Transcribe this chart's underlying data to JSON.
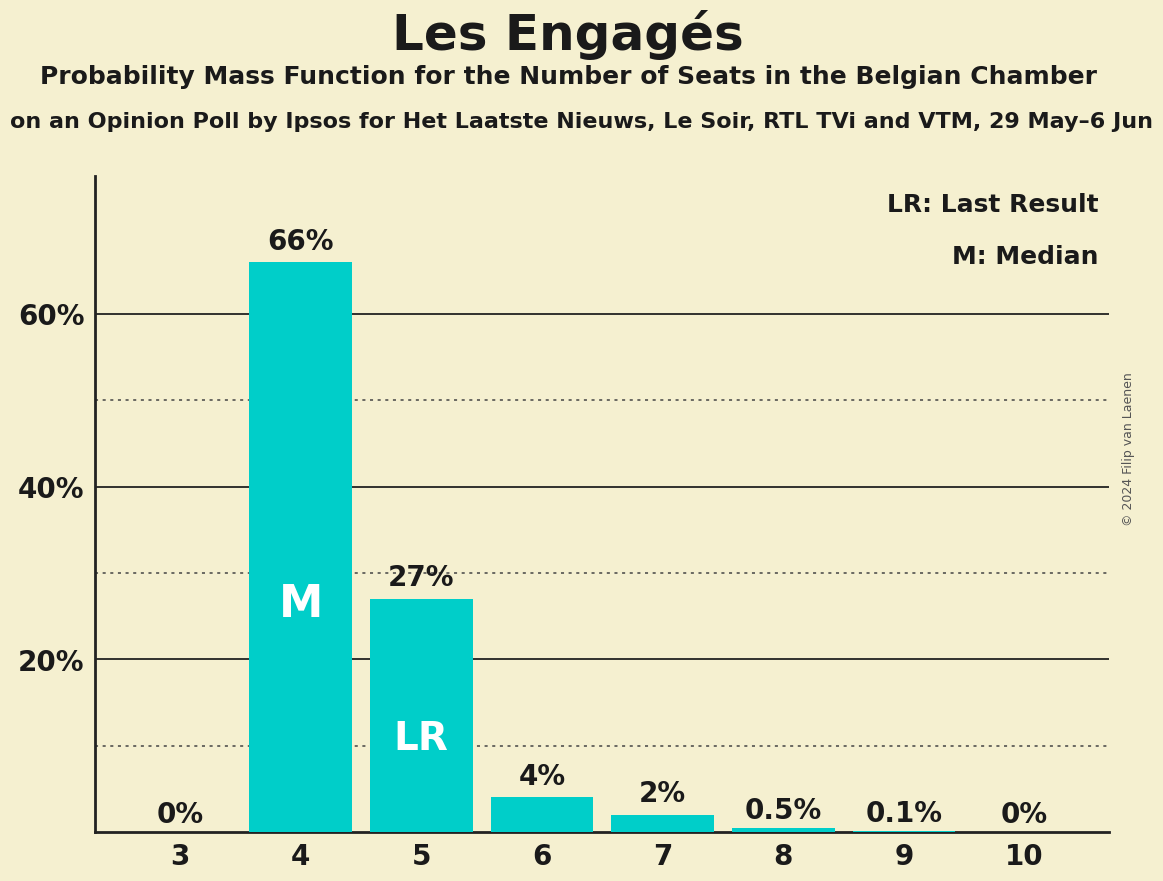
{
  "title": "Les Engagés",
  "subtitle1": "Probability Mass Function for the Number of Seats in the Belgian Chamber",
  "subtitle2": "on an Opinion Poll by Ipsos for Het Laatste Nieuws, Le Soir, RTL TVi and VTM, 29 May–6 Jun",
  "watermark": "© 2024 Filip van Laenen",
  "categories": [
    3,
    4,
    5,
    6,
    7,
    8,
    9,
    10
  ],
  "values": [
    0.0,
    0.66,
    0.27,
    0.04,
    0.02,
    0.005,
    0.001,
    0.0
  ],
  "bar_color": "#00CEC9",
  "background_color": "#f5f0d0",
  "bar_labels": [
    "0%",
    "66%",
    "27%",
    "4%",
    "2%",
    "0.5%",
    "0.1%",
    "0%"
  ],
  "median_bar": 4,
  "lr_bar": 5,
  "yticks": [
    0.2,
    0.4,
    0.6
  ],
  "ytick_labels": [
    "20%",
    "40%",
    "60%"
  ],
  "ylim": [
    0,
    0.76
  ],
  "solid_grid": [
    0.2,
    0.4,
    0.6
  ],
  "dotted_grid": [
    0.1,
    0.3,
    0.5
  ],
  "legend_lr": "LR: Last Result",
  "legend_m": "M: Median",
  "title_fontsize": 36,
  "subtitle1_fontsize": 18,
  "subtitle2_fontsize": 16,
  "axis_tick_fontsize": 20,
  "bar_label_fontsize": 20,
  "bar_annotation_fontsize": 28,
  "legend_fontsize": 18,
  "watermark_fontsize": 9
}
